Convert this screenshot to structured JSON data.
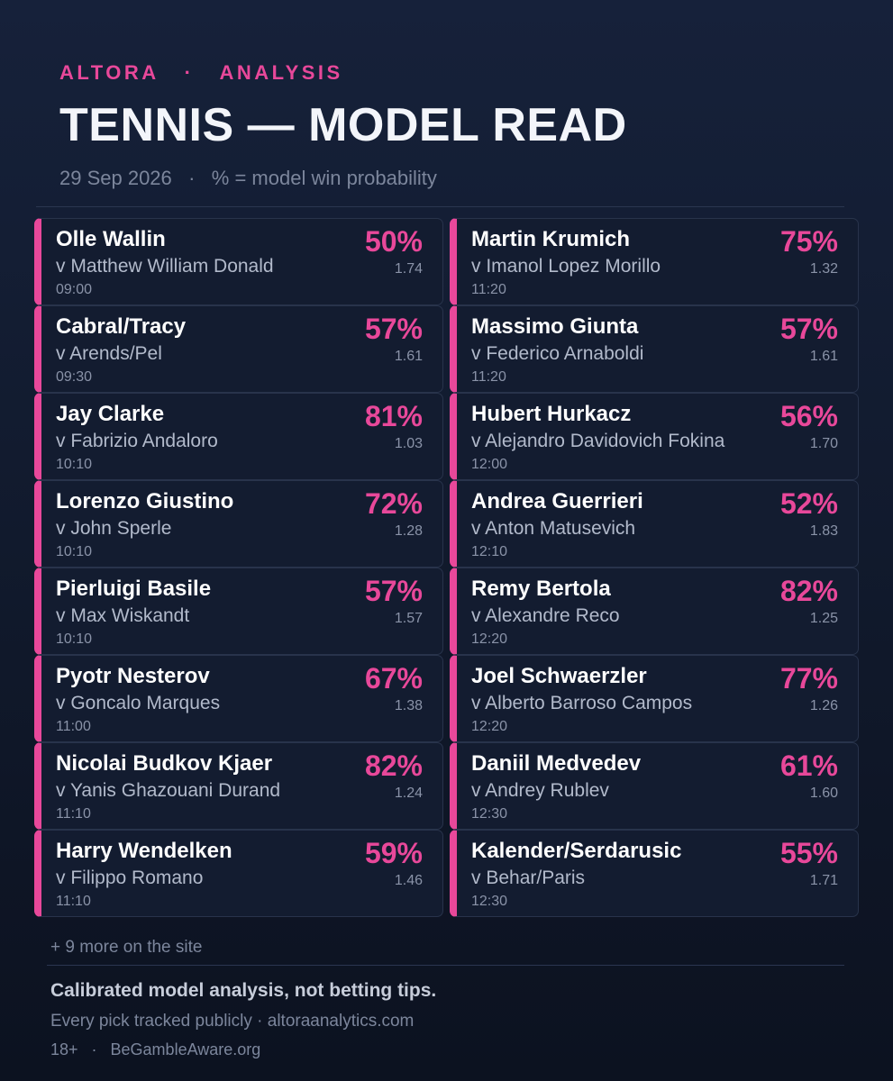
{
  "header": {
    "brand": "ALTORA   ·   ANALYSIS",
    "title": "TENNIS — MODEL READ",
    "subtitle": "29 Sep 2026   ·   % = model win probability"
  },
  "accent_color": "#e8489a",
  "matches": [
    {
      "player": "Olle Wallin",
      "opponent": "v Matthew William Donald",
      "time": "09:00",
      "pct": "50%",
      "odds": "1.74"
    },
    {
      "player": "Cabral/Tracy",
      "opponent": "v Arends/Pel",
      "time": "09:30",
      "pct": "57%",
      "odds": "1.61"
    },
    {
      "player": "Jay Clarke",
      "opponent": "v Fabrizio Andaloro",
      "time": "10:10",
      "pct": "81%",
      "odds": "1.03"
    },
    {
      "player": "Lorenzo Giustino",
      "opponent": "v John Sperle",
      "time": "10:10",
      "pct": "72%",
      "odds": "1.28"
    },
    {
      "player": "Pierluigi Basile",
      "opponent": "v Max Wiskandt",
      "time": "10:10",
      "pct": "57%",
      "odds": "1.57"
    },
    {
      "player": "Pyotr Nesterov",
      "opponent": "v Goncalo Marques",
      "time": "11:00",
      "pct": "67%",
      "odds": "1.38"
    },
    {
      "player": "Nicolai Budkov Kjaer",
      "opponent": "v Yanis Ghazouani Durand",
      "time": "11:10",
      "pct": "82%",
      "odds": "1.24"
    },
    {
      "player": "Harry Wendelken",
      "opponent": "v Filippo Romano",
      "time": "11:10",
      "pct": "59%",
      "odds": "1.46"
    },
    {
      "player": "Martin Krumich",
      "opponent": "v Imanol Lopez Morillo",
      "time": "11:20",
      "pct": "75%",
      "odds": "1.32"
    },
    {
      "player": "Massimo Giunta",
      "opponent": "v Federico Arnaboldi",
      "time": "11:20",
      "pct": "57%",
      "odds": "1.61"
    },
    {
      "player": "Hubert Hurkacz",
      "opponent": "v Alejandro Davidovich Fokina",
      "time": "12:00",
      "pct": "56%",
      "odds": "1.70"
    },
    {
      "player": "Andrea Guerrieri",
      "opponent": "v Anton Matusevich",
      "time": "12:10",
      "pct": "52%",
      "odds": "1.83"
    },
    {
      "player": "Remy Bertola",
      "opponent": "v Alexandre Reco",
      "time": "12:20",
      "pct": "82%",
      "odds": "1.25"
    },
    {
      "player": "Joel Schwaerzler",
      "opponent": "v Alberto Barroso Campos",
      "time": "12:20",
      "pct": "77%",
      "odds": "1.26"
    },
    {
      "player": "Daniil Medvedev",
      "opponent": "v Andrey Rublev",
      "time": "12:30",
      "pct": "61%",
      "odds": "1.60"
    },
    {
      "player": "Kalender/Serdarusic",
      "opponent": "v Behar/Paris",
      "time": "12:30",
      "pct": "55%",
      "odds": "1.71"
    }
  ],
  "more_text": "+ 9 more on the site",
  "footer": {
    "disclaimer": "Calibrated model analysis, not betting tips.",
    "tracked": "Every pick tracked publicly · altoraanalytics.com",
    "aware": "18+   ·   BeGambleAware.org"
  }
}
